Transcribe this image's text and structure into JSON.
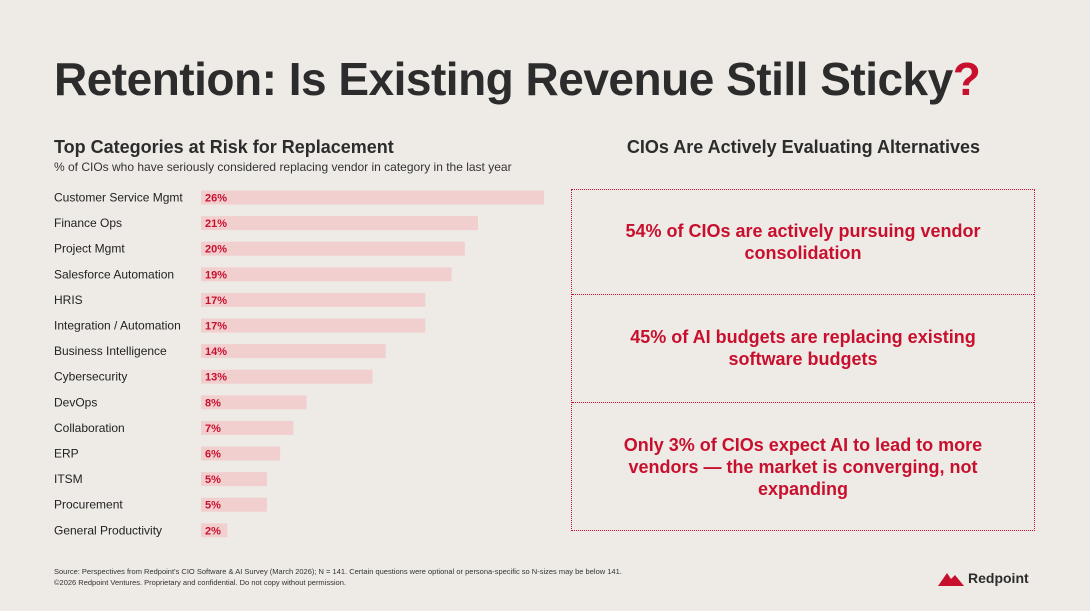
{
  "title": {
    "text": "Retention: Is Existing Revenue Still Sticky",
    "mark": "?"
  },
  "left": {
    "heading": "Top Categories at Risk for Replacement",
    "subheading": "% of CIOs who have seriously considered replacing vendor in category in the last year"
  },
  "right": {
    "heading": "CIOs Are Actively Evaluating Alternatives",
    "callouts": [
      "54% of CIOs are actively pursuing vendor consolidation",
      "45% of AI budgets are replacing existing software budgets",
      "Only 3% of CIOs expect AI to lead to more vendors — the market is converging, not expanding"
    ]
  },
  "footer": {
    "source": "Source: Perspectives from Redpoint’s CIO Software & AI Survey (March 2026); N = 141. Certain questions were optional or persona-specific so  N-sizes may be below 141.",
    "copyright": "©2026 Redpoint Ventures. Proprietary and confidential. Do not copy without permission."
  },
  "logo": {
    "text": "Redpoint",
    "icon": "redpoint-mountain-icon"
  },
  "colors": {
    "accent": "#c8102e",
    "bar": "#f2cfcf",
    "background": "#eeebe6"
  },
  "chart_data": {
    "type": "bar",
    "orientation": "horizontal",
    "categories": [
      "Customer Service Mgmt",
      "Finance Ops",
      "Project Mgmt",
      "Salesforce Automation",
      "HRIS",
      "Integration / Automation",
      "Business Intelligence",
      "Cybersecurity",
      "DevOps",
      "Collaboration",
      "ERP",
      "ITSM",
      "Procurement",
      "General Productivity"
    ],
    "values": [
      26,
      21,
      20,
      19,
      17,
      17,
      14,
      13,
      8,
      7,
      6,
      5,
      5,
      2
    ],
    "value_suffix": "%",
    "xlim": [
      0,
      26
    ],
    "grid": false,
    "legend": "none"
  }
}
